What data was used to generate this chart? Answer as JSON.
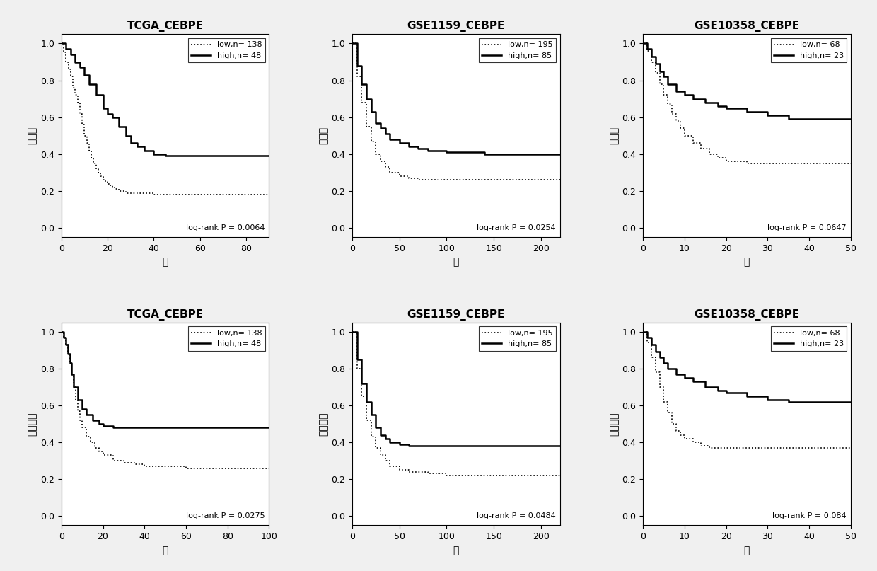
{
  "panels": [
    {
      "title": "TCGA_CEBPE",
      "ylabel": "总生存",
      "xlabel": "月",
      "xlim": [
        0,
        90
      ],
      "xticks": [
        0,
        20,
        40,
        60,
        80
      ],
      "ylim": [
        -0.05,
        1.05
      ],
      "yticks": [
        0.0,
        0.2,
        0.4,
        0.6,
        0.8,
        1.0
      ],
      "pvalue": "log-rank P = 0.0064",
      "legend_low": "low,n= 138",
      "legend_high": "high,n= 48",
      "low_x": [
        0,
        1,
        2,
        3,
        4,
        5,
        6,
        7,
        8,
        9,
        10,
        11,
        12,
        13,
        14,
        15,
        16,
        17,
        18,
        19,
        20,
        21,
        22,
        23,
        24,
        25,
        26,
        27,
        28,
        29,
        30,
        35,
        40,
        45,
        50,
        55,
        60,
        65,
        70,
        75,
        80,
        85,
        90
      ],
      "low_y": [
        1.0,
        0.95,
        0.9,
        0.86,
        0.82,
        0.76,
        0.72,
        0.68,
        0.62,
        0.56,
        0.5,
        0.46,
        0.42,
        0.38,
        0.35,
        0.32,
        0.3,
        0.28,
        0.26,
        0.25,
        0.24,
        0.23,
        0.22,
        0.21,
        0.21,
        0.2,
        0.2,
        0.2,
        0.19,
        0.19,
        0.19,
        0.19,
        0.18,
        0.18,
        0.18,
        0.18,
        0.18,
        0.18,
        0.18,
        0.18,
        0.18,
        0.18,
        0.18
      ],
      "high_x": [
        0,
        2,
        4,
        6,
        8,
        10,
        12,
        15,
        18,
        20,
        22,
        25,
        28,
        30,
        33,
        36,
        40,
        45,
        50,
        55,
        60,
        65,
        70,
        75,
        80,
        85,
        90
      ],
      "high_y": [
        1.0,
        0.97,
        0.94,
        0.9,
        0.87,
        0.83,
        0.78,
        0.72,
        0.65,
        0.62,
        0.6,
        0.55,
        0.5,
        0.46,
        0.44,
        0.42,
        0.4,
        0.39,
        0.39,
        0.39,
        0.39,
        0.39,
        0.39,
        0.39,
        0.39,
        0.39,
        0.39
      ]
    },
    {
      "title": "GSE1159_CEBPE",
      "ylabel": "总生存",
      "xlabel": "月",
      "xlim": [
        0,
        220
      ],
      "xticks": [
        0,
        50,
        100,
        150,
        200
      ],
      "ylim": [
        -0.05,
        1.05
      ],
      "yticks": [
        0.0,
        0.2,
        0.4,
        0.6,
        0.8,
        1.0
      ],
      "pvalue": "log-rank P = 0.0254",
      "legend_low": "low,n= 195",
      "legend_high": "high,n= 85",
      "low_x": [
        0,
        5,
        10,
        15,
        20,
        25,
        30,
        35,
        40,
        50,
        60,
        70,
        80,
        100,
        120,
        140,
        160,
        180,
        200,
        220
      ],
      "low_y": [
        1.0,
        0.82,
        0.68,
        0.55,
        0.47,
        0.4,
        0.36,
        0.33,
        0.3,
        0.28,
        0.27,
        0.26,
        0.26,
        0.26,
        0.26,
        0.26,
        0.26,
        0.26,
        0.26,
        0.26
      ],
      "high_x": [
        0,
        5,
        10,
        15,
        20,
        25,
        30,
        35,
        40,
        50,
        60,
        70,
        80,
        100,
        120,
        140,
        160,
        180,
        200,
        220
      ],
      "high_y": [
        1.0,
        0.88,
        0.78,
        0.7,
        0.63,
        0.57,
        0.54,
        0.51,
        0.48,
        0.46,
        0.44,
        0.43,
        0.42,
        0.41,
        0.41,
        0.4,
        0.4,
        0.4,
        0.4,
        0.4
      ]
    },
    {
      "title": "GSE10358_CEBPE",
      "ylabel": "总生存",
      "xlabel": "月",
      "xlim": [
        0,
        50
      ],
      "xticks": [
        0,
        10,
        20,
        30,
        40,
        50
      ],
      "ylim": [
        -0.05,
        1.05
      ],
      "yticks": [
        0.0,
        0.2,
        0.4,
        0.6,
        0.8,
        1.0
      ],
      "pvalue": "log-rank P = 0.0647",
      "legend_low": "low,n= 68",
      "legend_high": "high,n= 23",
      "low_x": [
        0,
        1,
        2,
        3,
        4,
        5,
        6,
        7,
        8,
        9,
        10,
        12,
        14,
        16,
        18,
        20,
        25,
        30,
        35,
        40,
        45,
        50
      ],
      "low_y": [
        1.0,
        0.96,
        0.9,
        0.84,
        0.78,
        0.72,
        0.67,
        0.62,
        0.58,
        0.54,
        0.5,
        0.46,
        0.43,
        0.4,
        0.38,
        0.36,
        0.35,
        0.35,
        0.35,
        0.35,
        0.35,
        0.35
      ],
      "high_x": [
        0,
        1,
        2,
        3,
        4,
        5,
        6,
        8,
        10,
        12,
        15,
        18,
        20,
        25,
        30,
        35,
        40,
        45,
        50
      ],
      "high_y": [
        1.0,
        0.97,
        0.93,
        0.89,
        0.85,
        0.82,
        0.78,
        0.74,
        0.72,
        0.7,
        0.68,
        0.66,
        0.65,
        0.63,
        0.61,
        0.59,
        0.59,
        0.59,
        0.59
      ]
    },
    {
      "title": "TCGA_CEBPE",
      "ylabel": "无病生存",
      "xlabel": "月",
      "xlim": [
        0,
        100
      ],
      "xticks": [
        0,
        20,
        40,
        60,
        80,
        100
      ],
      "ylim": [
        -0.05,
        1.05
      ],
      "yticks": [
        0.0,
        0.2,
        0.4,
        0.6,
        0.8,
        1.0
      ],
      "pvalue": "log-rank P = 0.0275",
      "legend_low": "low,n= 138",
      "legend_high": "high,n= 48",
      "low_x": [
        0,
        1,
        2,
        3,
        4,
        5,
        6,
        7,
        8,
        9,
        10,
        12,
        14,
        16,
        18,
        20,
        25,
        30,
        35,
        40,
        50,
        60,
        70,
        80,
        90,
        100
      ],
      "low_y": [
        1.0,
        0.97,
        0.93,
        0.88,
        0.83,
        0.77,
        0.7,
        0.63,
        0.57,
        0.52,
        0.48,
        0.43,
        0.4,
        0.37,
        0.35,
        0.33,
        0.3,
        0.29,
        0.28,
        0.27,
        0.27,
        0.26,
        0.26,
        0.26,
        0.26,
        0.26
      ],
      "high_x": [
        0,
        1,
        2,
        3,
        4,
        5,
        6,
        8,
        10,
        12,
        15,
        18,
        20,
        25,
        30,
        35,
        40,
        50,
        60,
        70,
        80,
        90,
        100
      ],
      "high_y": [
        1.0,
        0.97,
        0.93,
        0.88,
        0.83,
        0.77,
        0.7,
        0.63,
        0.58,
        0.55,
        0.52,
        0.5,
        0.49,
        0.48,
        0.48,
        0.48,
        0.48,
        0.48,
        0.48,
        0.48,
        0.48,
        0.48,
        0.48
      ]
    },
    {
      "title": "GSE1159_CEBPE",
      "ylabel": "无病生存",
      "xlabel": "月",
      "xlim": [
        0,
        220
      ],
      "xticks": [
        0,
        50,
        100,
        150,
        200
      ],
      "ylim": [
        -0.05,
        1.05
      ],
      "yticks": [
        0.0,
        0.2,
        0.4,
        0.6,
        0.8,
        1.0
      ],
      "pvalue": "log-rank P = 0.0484",
      "legend_low": "low,n= 195",
      "legend_high": "high,n= 85",
      "low_x": [
        0,
        5,
        10,
        15,
        20,
        25,
        30,
        35,
        40,
        50,
        60,
        80,
        100,
        120,
        140,
        160,
        180,
        200,
        220
      ],
      "low_y": [
        1.0,
        0.8,
        0.65,
        0.52,
        0.43,
        0.37,
        0.33,
        0.3,
        0.27,
        0.25,
        0.24,
        0.23,
        0.22,
        0.22,
        0.22,
        0.22,
        0.22,
        0.22,
        0.22
      ],
      "high_x": [
        0,
        5,
        10,
        15,
        20,
        25,
        30,
        35,
        40,
        50,
        60,
        80,
        100,
        120,
        140,
        160,
        180,
        200,
        220
      ],
      "high_y": [
        1.0,
        0.85,
        0.72,
        0.62,
        0.55,
        0.48,
        0.44,
        0.42,
        0.4,
        0.39,
        0.38,
        0.38,
        0.38,
        0.38,
        0.38,
        0.38,
        0.38,
        0.38,
        0.38
      ]
    },
    {
      "title": "GSE10358_CEBPE",
      "ylabel": "无病生存",
      "xlabel": "月",
      "xlim": [
        0,
        50
      ],
      "xticks": [
        0,
        10,
        20,
        30,
        40,
        50
      ],
      "ylim": [
        -0.05,
        1.05
      ],
      "yticks": [
        0.0,
        0.2,
        0.4,
        0.6,
        0.8,
        1.0
      ],
      "pvalue": "log-rank P = 0.084",
      "legend_low": "low,n= 68",
      "legend_high": "high,n= 23",
      "low_x": [
        0,
        1,
        2,
        3,
        4,
        5,
        6,
        7,
        8,
        9,
        10,
        12,
        14,
        16,
        18,
        20,
        25,
        30,
        35,
        40,
        45,
        50
      ],
      "low_y": [
        1.0,
        0.94,
        0.86,
        0.78,
        0.7,
        0.62,
        0.56,
        0.5,
        0.46,
        0.44,
        0.42,
        0.4,
        0.38,
        0.37,
        0.37,
        0.37,
        0.37,
        0.37,
        0.37,
        0.37,
        0.37,
        0.37
      ],
      "high_x": [
        0,
        1,
        2,
        3,
        4,
        5,
        6,
        8,
        10,
        12,
        15,
        18,
        20,
        25,
        30,
        35,
        40,
        45,
        50
      ],
      "high_y": [
        1.0,
        0.97,
        0.93,
        0.89,
        0.86,
        0.83,
        0.8,
        0.77,
        0.75,
        0.73,
        0.7,
        0.68,
        0.67,
        0.65,
        0.63,
        0.62,
        0.62,
        0.62,
        0.62
      ]
    }
  ],
  "background_color": "#f0f0f0",
  "title_fontsize": 11,
  "label_fontsize": 10,
  "tick_fontsize": 9,
  "legend_fontsize": 8,
  "pvalue_fontsize": 8
}
